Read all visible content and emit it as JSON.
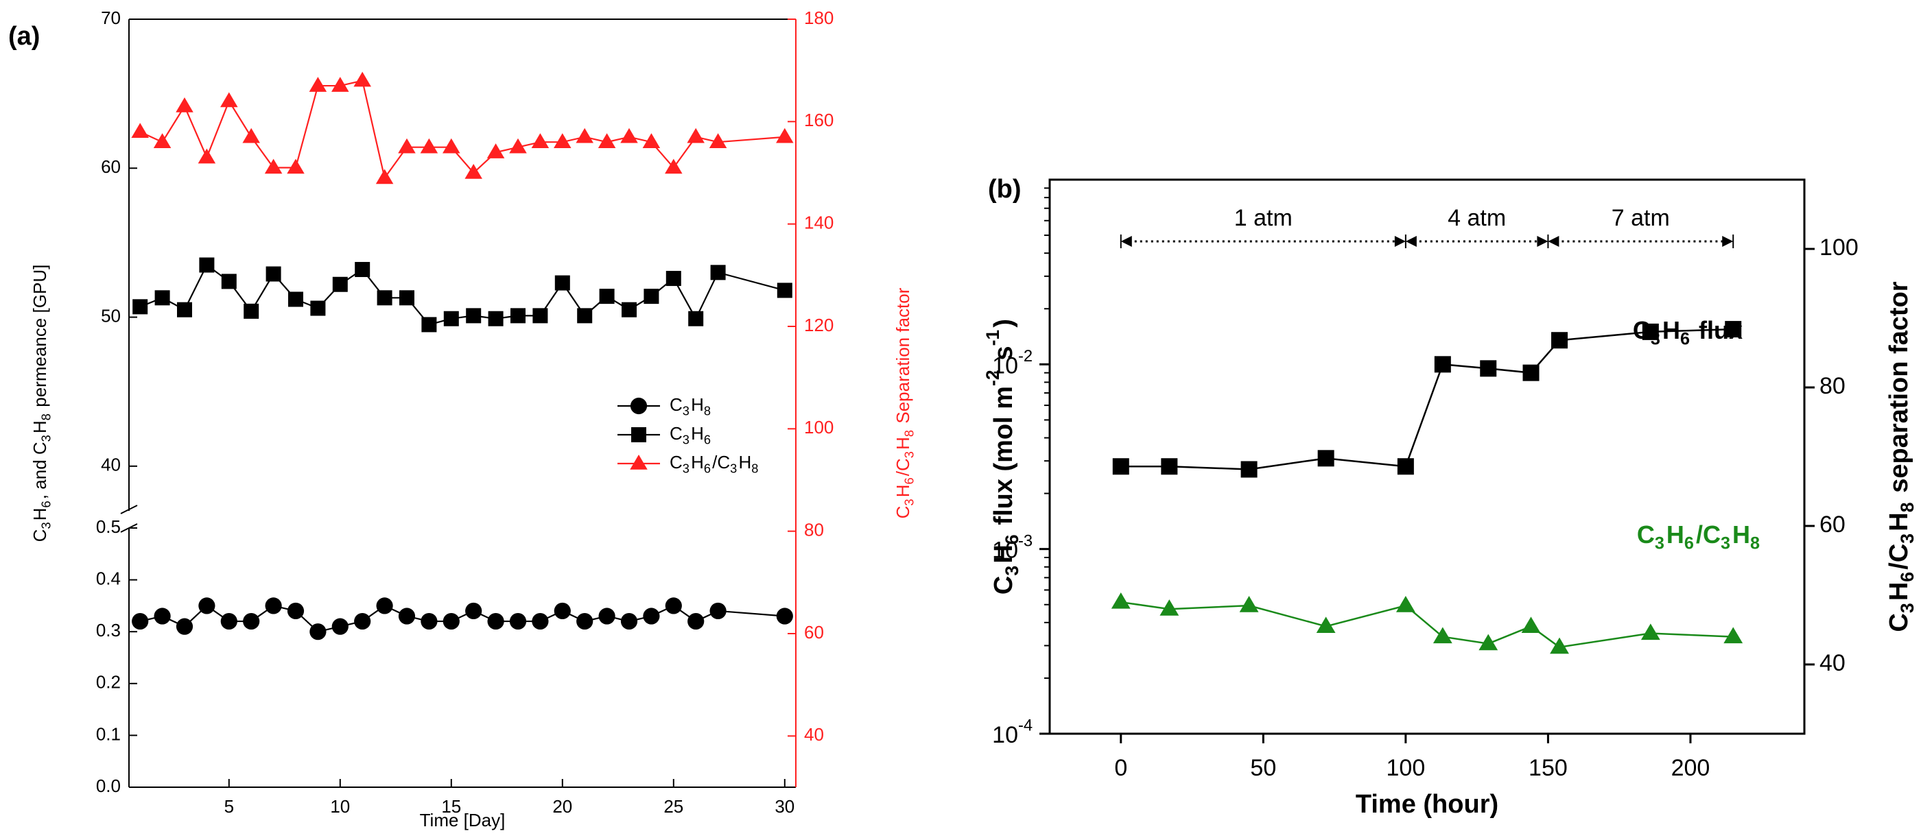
{
  "colors": {
    "black": "#000000",
    "red": "#ff2020",
    "green": "#1a8a1a"
  },
  "chart_data": [
    {
      "panel_label": "(a)",
      "type": "line",
      "xlabel": "Time [Day]",
      "ylabel_parts": [
        "C",
        "3",
        "H",
        "6",
        ", and C",
        "3",
        "H",
        "8",
        " permeance [GPU]"
      ],
      "y2label_parts": [
        "C",
        "3",
        "H",
        "6",
        "/C",
        "3",
        "H",
        "8",
        " Separation factor"
      ],
      "xlim": [
        0.5,
        30.5
      ],
      "x_ticks": [
        5,
        10,
        15,
        20,
        25,
        30
      ],
      "x_ticklabels": [
        "5",
        "10",
        "15",
        "20",
        "25",
        "30"
      ],
      "y_lower_ticks": [
        0.0,
        0.1,
        0.2,
        0.3,
        0.4,
        0.5
      ],
      "y_lower_ticklabels": [
        "0.0",
        "0.1",
        "0.2",
        "0.3",
        "0.4",
        "0.5"
      ],
      "y_upper_ticks": [
        40,
        50,
        60,
        70
      ],
      "y_upper_ticklabels": [
        "40",
        "50",
        "60",
        "70"
      ],
      "y_axis_break": true,
      "y2lim": [
        30,
        180
      ],
      "y2_ticks": [
        40,
        60,
        80,
        100,
        120,
        140,
        160,
        180
      ],
      "y2_ticklabels": [
        "40",
        "60",
        "80",
        "100",
        "120",
        "140",
        "160",
        "180"
      ],
      "legend": [
        {
          "name_parts": [
            "C",
            "3",
            "H",
            "8"
          ],
          "marker": "circle",
          "color": "#000000"
        },
        {
          "name_parts": [
            "C",
            "3",
            "H",
            "6"
          ],
          "marker": "square",
          "color": "#000000"
        },
        {
          "name_parts": [
            "C",
            "3",
            "H",
            "6",
            "/C",
            "3",
            "H",
            "8"
          ],
          "marker": "triangle",
          "color": "#ff2020"
        }
      ],
      "series": [
        {
          "name": "C3H8",
          "axis": "left-lower",
          "marker": "circle",
          "color": "#000000",
          "x": [
            1,
            2,
            3,
            4,
            5,
            6,
            7,
            8,
            9,
            10,
            11,
            12,
            13,
            14,
            15,
            16,
            17,
            18,
            19,
            20,
            21,
            22,
            23,
            24,
            25,
            26,
            27,
            30
          ],
          "values": [
            0.32,
            0.33,
            0.31,
            0.35,
            0.32,
            0.32,
            0.35,
            0.34,
            0.3,
            0.31,
            0.32,
            0.35,
            0.33,
            0.32,
            0.32,
            0.34,
            0.32,
            0.32,
            0.32,
            0.34,
            0.32,
            0.33,
            0.32,
            0.33,
            0.35,
            0.32,
            0.34,
            0.33
          ]
        },
        {
          "name": "C3H6",
          "axis": "left-upper",
          "marker": "square",
          "color": "#000000",
          "x": [
            1,
            2,
            3,
            4,
            5,
            6,
            7,
            8,
            9,
            10,
            11,
            12,
            13,
            14,
            15,
            16,
            17,
            18,
            19,
            20,
            21,
            22,
            23,
            24,
            25,
            26,
            27,
            30
          ],
          "values": [
            50.7,
            51.3,
            50.5,
            53.5,
            52.4,
            50.4,
            52.9,
            51.2,
            50.6,
            52.2,
            53.2,
            51.3,
            51.3,
            49.5,
            49.9,
            50.1,
            49.9,
            50.1,
            50.1,
            52.3,
            50.1,
            51.4,
            50.5,
            51.4,
            52.6,
            49.9,
            53.0,
            51.8
          ]
        },
        {
          "name": "C3H6/C3H8",
          "axis": "right",
          "marker": "triangle",
          "color": "#ff2020",
          "x": [
            1,
            2,
            3,
            4,
            5,
            6,
            7,
            8,
            9,
            10,
            11,
            12,
            13,
            14,
            15,
            16,
            17,
            18,
            19,
            20,
            21,
            22,
            23,
            24,
            25,
            26,
            27,
            30
          ],
          "values": [
            158,
            156,
            163,
            153,
            164,
            157,
            151,
            151,
            167,
            167,
            168,
            149,
            155,
            155,
            155,
            150,
            154,
            155,
            156,
            156,
            157,
            156,
            157,
            156,
            151,
            157,
            156,
            157
          ]
        }
      ]
    },
    {
      "panel_label": "(b)",
      "type": "line",
      "xlabel": "Time (hour)",
      "ylabel_parts": [
        "C",
        "3",
        "H",
        "6",
        " flux (mol m",
        "-2",
        " s",
        "-1",
        ")"
      ],
      "y2label_parts": [
        "C",
        "3",
        "H",
        "6",
        "/C",
        "3",
        "H",
        "8",
        " separation factor"
      ],
      "xlim": [
        -25,
        240
      ],
      "x_ticks": [
        0,
        50,
        100,
        150,
        200
      ],
      "x_ticklabels": [
        "0",
        "50",
        "100",
        "150",
        "200"
      ],
      "y_scale": "log",
      "ylim": [
        0.0001,
        0.1
      ],
      "y_ticks": [
        0.0001,
        0.001,
        0.01
      ],
      "y_tick_base": "10",
      "y_tick_exponents": [
        "-4",
        "-3",
        "-2"
      ],
      "y2lim": [
        30,
        110
      ],
      "y2_ticks": [
        40,
        60,
        80,
        100
      ],
      "y2_ticklabels": [
        "40",
        "60",
        "80",
        "100"
      ],
      "pressure_regions": [
        {
          "label": "1 atm",
          "x_start": 0,
          "x_end": 100
        },
        {
          "label": "4 atm",
          "x_start": 100,
          "x_end": 150
        },
        {
          "label": "7 atm",
          "x_start": 150,
          "x_end": 215
        }
      ],
      "annotations": [
        {
          "text_parts": [
            "C",
            "3",
            "H",
            "6",
            " flux"
          ],
          "color": "#000000"
        },
        {
          "text_parts": [
            "C",
            "3",
            "H",
            "6",
            "/C",
            "3",
            "H",
            "8"
          ],
          "color": "#1a8a1a"
        }
      ],
      "series": [
        {
          "name": "C3H6 flux",
          "axis": "left",
          "marker": "square",
          "color": "#000000",
          "x": [
            0,
            17,
            45,
            72,
            100,
            113,
            129,
            144,
            154,
            186,
            215
          ],
          "values": [
            0.0028,
            0.0028,
            0.0027,
            0.0031,
            0.0028,
            0.01,
            0.0095,
            0.009,
            0.0135,
            0.015,
            0.0155
          ]
        },
        {
          "name": "C3H6/C3H8",
          "axis": "right",
          "marker": "triangle",
          "color": "#1a8a1a",
          "x": [
            0,
            17,
            45,
            72,
            100,
            113,
            129,
            144,
            154,
            186,
            215
          ],
          "values": [
            49,
            48,
            48.5,
            45.5,
            48.5,
            44,
            43,
            45.5,
            42.5,
            44.5,
            44
          ]
        }
      ]
    }
  ]
}
